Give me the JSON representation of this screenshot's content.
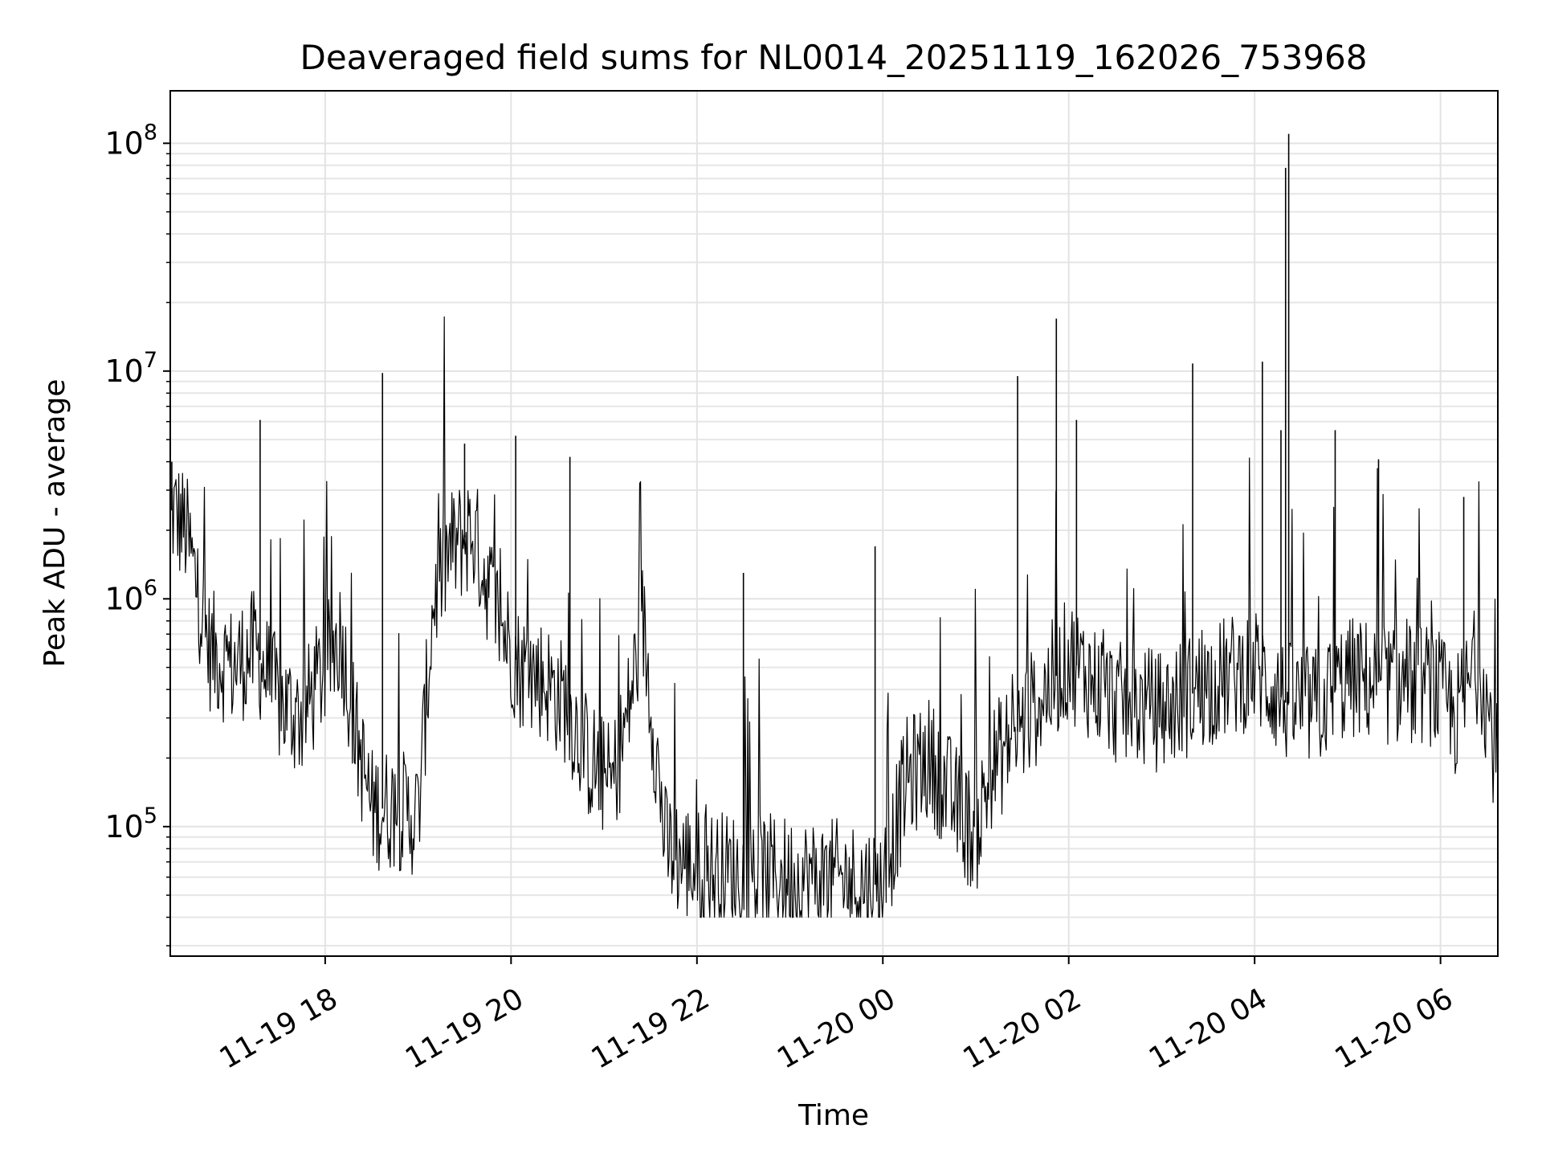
{
  "chart_data": {
    "type": "line",
    "title": "Deaveraged field sums for NL0014_20251119_162026_753968",
    "xlabel": "Time",
    "ylabel": "Peak ADU - average",
    "yscale": "log",
    "ylim": [
      27000,
      170000000
    ],
    "xlim": [
      "2025-11-19 16:20",
      "2025-11-20 06:37"
    ],
    "grid": true,
    "line_color": "#000000",
    "x_ticks": [
      {
        "value": "2025-11-19 18:00",
        "label": "11-19 18"
      },
      {
        "value": "2025-11-19 20:00",
        "label": "11-19 20"
      },
      {
        "value": "2025-11-19 22:00",
        "label": "11-19 22"
      },
      {
        "value": "2025-11-20 00:00",
        "label": "11-20 00"
      },
      {
        "value": "2025-11-20 02:00",
        "label": "11-20 02"
      },
      {
        "value": "2025-11-20 04:00",
        "label": "11-20 04"
      },
      {
        "value": "2025-11-20 06:00",
        "label": "11-20 06"
      }
    ],
    "y_ticks": [
      {
        "value": 100000,
        "base": "10",
        "exp": "5"
      },
      {
        "value": 1000000,
        "base": "10",
        "exp": "6"
      },
      {
        "value": 10000000,
        "base": "10",
        "exp": "7"
      },
      {
        "value": 100000000,
        "base": "10",
        "exp": "8"
      }
    ],
    "series": [
      {
        "x": [
          "2025-11-19 16:20",
          "2025-11-19 16:30",
          "2025-11-19 16:45",
          "2025-11-19 17:00",
          "2025-11-19 17:15",
          "2025-11-19 17:30",
          "2025-11-19 17:45",
          "2025-11-19 18:00",
          "2025-11-19 18:10",
          "2025-11-19 18:20",
          "2025-11-19 18:30",
          "2025-11-19 18:45",
          "2025-11-19 19:00",
          "2025-11-19 19:10",
          "2025-11-19 19:20",
          "2025-11-19 19:35",
          "2025-11-19 19:50",
          "2025-11-19 20:05",
          "2025-11-19 20:20",
          "2025-11-19 20:35",
          "2025-11-19 20:50",
          "2025-11-19 21:05",
          "2025-11-19 21:15",
          "2025-11-19 21:25",
          "2025-11-19 21:40",
          "2025-11-19 22:00",
          "2025-11-19 22:30",
          "2025-11-19 23:00",
          "2025-11-19 23:30",
          "2025-11-20 00:00",
          "2025-11-20 00:15",
          "2025-11-20 00:30",
          "2025-11-20 00:45",
          "2025-11-20 01:00",
          "2025-11-20 01:10",
          "2025-11-20 01:25",
          "2025-11-20 01:40",
          "2025-11-20 02:00",
          "2025-11-20 02:30",
          "2025-11-20 03:00",
          "2025-11-20 03:30",
          "2025-11-20 04:00",
          "2025-11-20 04:20",
          "2025-11-20 04:40",
          "2025-11-20 05:00",
          "2025-11-20 05:30",
          "2025-11-20 05:55",
          "2025-11-20 06:10",
          "2025-11-20 06:25",
          "2025-11-20 06:37"
        ],
        "y": [
          2500000,
          2000000,
          600000,
          500000,
          600000,
          350000,
          300000,
          500000,
          700000,
          250000,
          120000,
          120000,
          110000,
          1000000,
          1600000,
          2000000,
          900000,
          500000,
          450000,
          350000,
          200000,
          150000,
          300000,
          800000,
          80000,
          65000,
          62000,
          60000,
          58000,
          55000,
          160000,
          200000,
          130000,
          90000,
          180000,
          250000,
          350000,
          550000,
          350000,
          320000,
          420000,
          500000,
          350000,
          330000,
          450000,
          420000,
          420000,
          300000,
          550000,
          180000
        ]
      }
    ],
    "spikes": [
      {
        "x": "2025-11-19 16:21",
        "y": 4000000
      },
      {
        "x": "2025-11-19 17:18",
        "y": 6100000
      },
      {
        "x": "2025-11-19 18:37",
        "y": 9800000
      },
      {
        "x": "2025-11-19 19:30",
        "y": 4800000
      },
      {
        "x": "2025-11-19 20:03",
        "y": 5200000
      },
      {
        "x": "2025-11-19 20:38",
        "y": 4200000
      },
      {
        "x": "2025-11-19 22:30",
        "y": 1300000
      },
      {
        "x": "2025-11-19 23:55",
        "y": 1700000
      },
      {
        "x": "2025-11-20 01:27",
        "y": 9500000
      },
      {
        "x": "2025-11-20 01:52",
        "y": 17000000
      },
      {
        "x": "2025-11-20 02:05",
        "y": 6100000
      },
      {
        "x": "2025-11-20 03:20",
        "y": 10800000
      },
      {
        "x": "2025-11-20 04:05",
        "y": 11000000
      },
      {
        "x": "2025-11-20 04:17",
        "y": 5500000
      },
      {
        "x": "2025-11-20 04:20",
        "y": 78000000
      },
      {
        "x": "2025-11-20 04:22",
        "y": 110000000
      },
      {
        "x": "2025-11-20 04:52",
        "y": 5500000
      },
      {
        "x": "2025-11-20 05:20",
        "y": 4100000
      },
      {
        "x": "2025-11-20 06:15",
        "y": 2800000
      }
    ]
  }
}
